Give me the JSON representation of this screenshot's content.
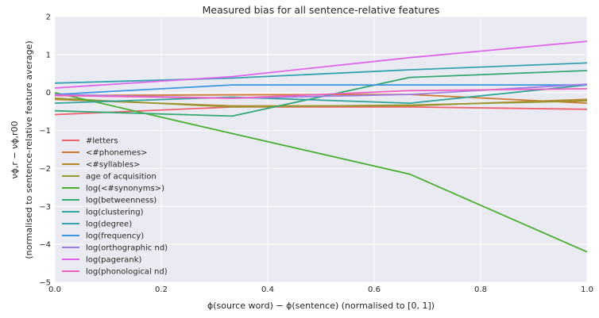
{
  "chart_data": {
    "type": "line",
    "title": "Measured bias for all sentence-relative features",
    "xlabel": "ϕ(source word) − ϕ(sentence) (normalised to [0, 1])",
    "ylabel_line1": "νϕ,r − νϕ,r00",
    "ylabel_line2": "(normalised to sentence-relative feature average)",
    "xlim": [
      0,
      1
    ],
    "ylim": [
      -5,
      2
    ],
    "xticks": [
      "0.0",
      "0.2",
      "0.4",
      "0.6",
      "0.8",
      "1.0"
    ],
    "yticks": [
      "−5",
      "−4",
      "−3",
      "−2",
      "−1",
      "0",
      "1",
      "2"
    ],
    "grid": true,
    "legend_position": "lower-left",
    "x": [
      0,
      0.3333,
      0.6667,
      1.0
    ],
    "series": [
      {
        "name": "#letters",
        "color": "#f0626d",
        "values": [
          -0.58,
          -0.38,
          -0.38,
          -0.44
        ]
      },
      {
        "name": "<#phonemes>",
        "color": "#d1772e",
        "values": [
          -0.08,
          -0.06,
          -0.05,
          -0.28
        ]
      },
      {
        "name": "<#syllables>",
        "color": "#b9882d",
        "values": [
          -0.18,
          -0.35,
          -0.35,
          -0.18
        ]
      },
      {
        "name": "age of acquisition",
        "color": "#95982e",
        "values": [
          -0.15,
          -0.38,
          -0.33,
          -0.22
        ]
      },
      {
        "name": "log(<#synonyms>)",
        "color": "#4bae32",
        "values": [
          0.0,
          -1.08,
          -2.15,
          -4.2
        ]
      },
      {
        "name": "log(betweenness)",
        "color": "#33a873",
        "values": [
          -0.48,
          -0.62,
          0.4,
          0.58
        ]
      },
      {
        "name": "log(clustering)",
        "color": "#31a59b",
        "values": [
          -0.28,
          -0.12,
          -0.28,
          0.2
        ]
      },
      {
        "name": "log(degree)",
        "color": "#33a2b1",
        "values": [
          0.25,
          0.38,
          0.6,
          0.78
        ]
      },
      {
        "name": "log(frequency)",
        "color": "#3a96e0",
        "values": [
          -0.05,
          0.2,
          0.2,
          0.2
        ]
      },
      {
        "name": "log(orthographic nd)",
        "color": "#a07de8",
        "values": [
          -0.05,
          -0.15,
          -0.05,
          0.22
        ]
      },
      {
        "name": "log(pagerank)",
        "color": "#df66ec",
        "values": [
          0.12,
          0.42,
          0.92,
          1.35
        ]
      },
      {
        "name": "log(phonological nd)",
        "color": "#ef61c0",
        "values": [
          -0.08,
          -0.15,
          0.05,
          0.1
        ]
      }
    ]
  }
}
